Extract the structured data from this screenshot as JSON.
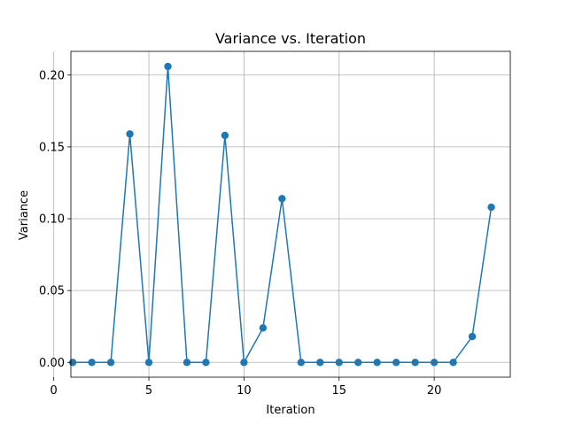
{
  "chart_data": {
    "type": "line",
    "title": "Variance vs. Iteration",
    "xlabel": "Iteration",
    "ylabel": "Variance",
    "xlim": [
      0.9,
      24.0
    ],
    "ylim": [
      -0.0103,
      0.2165
    ],
    "xticks": [
      0,
      5,
      10,
      15,
      20
    ],
    "yticks": [
      0.0,
      0.05,
      0.1,
      0.15,
      0.2
    ],
    "xtick_labels": [
      "0",
      "5",
      "10",
      "15",
      "20"
    ],
    "ytick_labels": [
      "0.00",
      "0.05",
      "0.10",
      "0.15",
      "0.20"
    ],
    "grid": true,
    "marker": "circle",
    "color": "#1f77b4",
    "series": [
      {
        "x": [
          1,
          2,
          3,
          4,
          5,
          6,
          7,
          8,
          9,
          10,
          11,
          12,
          13,
          14,
          15,
          16,
          17,
          18,
          19,
          20,
          21,
          22,
          23
        ],
        "values": [
          0.0,
          0.0,
          0.0,
          0.159,
          0.0,
          0.206,
          0.0,
          0.0,
          0.158,
          0.0,
          0.024,
          0.114,
          0.0,
          0.0,
          0.0,
          0.0,
          0.0,
          0.0,
          0.0,
          0.0,
          0.0,
          0.018,
          0.108
        ]
      }
    ]
  }
}
